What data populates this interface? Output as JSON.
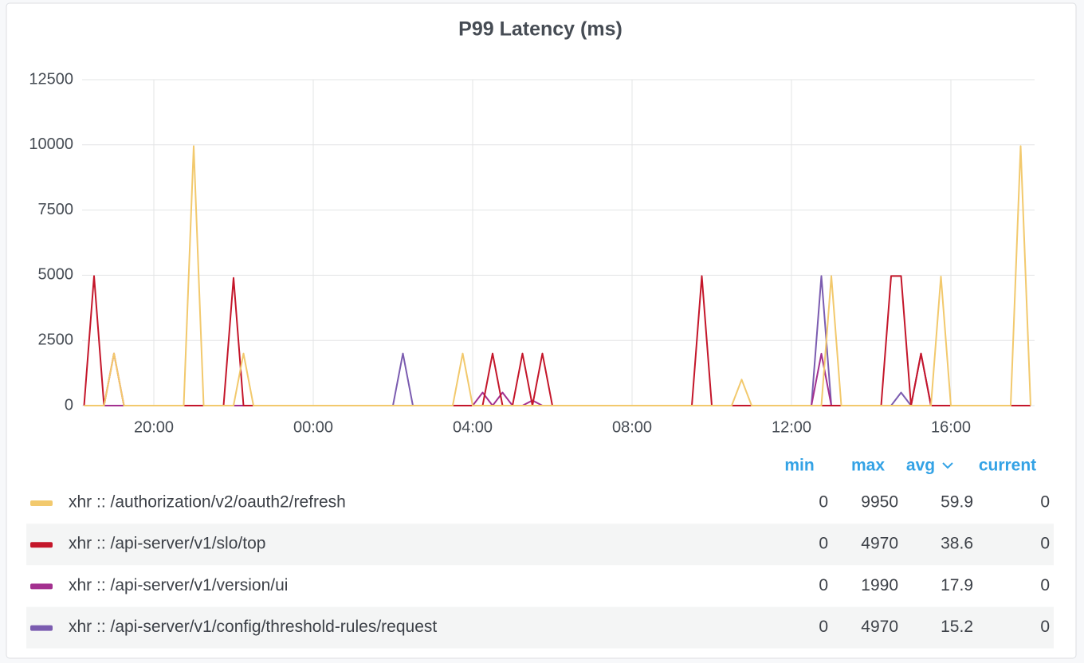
{
  "chart_data": {
    "type": "line",
    "title": "P99 Latency (ms)",
    "categories": [
      null,
      null,
      null,
      null,
      null,
      null,
      null,
      "20:00",
      null,
      null,
      null,
      null,
      null,
      null,
      null,
      null,
      null,
      null,
      null,
      null,
      null,
      null,
      null,
      "00:00",
      null,
      null,
      null,
      null,
      null,
      null,
      null,
      null,
      null,
      null,
      null,
      null,
      null,
      null,
      null,
      "04:00",
      null,
      null,
      null,
      null,
      null,
      null,
      null,
      null,
      null,
      null,
      null,
      null,
      null,
      null,
      null,
      "08:00",
      null,
      null,
      null,
      null,
      null,
      null,
      null,
      null,
      null,
      null,
      null,
      null,
      null,
      null,
      null,
      "12:00",
      null,
      null,
      null,
      null,
      null,
      null,
      null,
      null,
      null,
      null,
      null,
      null,
      null,
      null,
      null,
      "16:00",
      null,
      null,
      null,
      null,
      null,
      null,
      null,
      null
    ],
    "ylim": [
      0,
      12500
    ],
    "yticks": [
      0,
      2500,
      5000,
      7500,
      10000,
      12500
    ],
    "grid": true,
    "legend_columns": [
      "min",
      "max",
      "avg",
      "current"
    ],
    "series": [
      {
        "name": "xhr :: /authorization/v2/oauth2/refresh",
        "color": "#f2c96d",
        "min": 0,
        "max": 9950,
        "avg": 59.9,
        "current": 0,
        "values": [
          0,
          0,
          0,
          2000,
          0,
          0,
          0,
          0,
          0,
          0,
          0,
          9950,
          0,
          0,
          0,
          0,
          2000,
          0,
          0,
          0,
          0,
          0,
          0,
          0,
          0,
          0,
          0,
          0,
          0,
          0,
          0,
          0,
          0,
          0,
          0,
          0,
          0,
          0,
          2000,
          0,
          0,
          0,
          0,
          0,
          0,
          0,
          0,
          0,
          0,
          0,
          0,
          0,
          0,
          0,
          0,
          0,
          0,
          0,
          0,
          0,
          0,
          0,
          0,
          0,
          0,
          0,
          1000,
          0,
          0,
          0,
          0,
          0,
          0,
          0,
          0,
          4970,
          0,
          0,
          0,
          0,
          0,
          0,
          0,
          0,
          0,
          0,
          4950,
          0,
          0,
          0,
          0,
          0,
          0,
          0,
          9950,
          0
        ]
      },
      {
        "name": "xhr :: /api-server/v1/slo/top",
        "color": "#c4162a",
        "min": 0,
        "max": 4970,
        "avg": 38.6,
        "current": 0,
        "values": [
          0,
          4970,
          0,
          2000,
          0,
          0,
          0,
          0,
          0,
          0,
          0,
          0,
          0,
          0,
          0,
          4900,
          0,
          0,
          0,
          0,
          0,
          0,
          0,
          0,
          0,
          0,
          0,
          0,
          0,
          0,
          0,
          0,
          0,
          0,
          0,
          0,
          0,
          0,
          0,
          0,
          0,
          2000,
          0,
          0,
          2000,
          0,
          2000,
          0,
          0,
          0,
          0,
          0,
          0,
          0,
          0,
          0,
          0,
          0,
          0,
          0,
          0,
          0,
          4970,
          0,
          0,
          0,
          0,
          0,
          0,
          0,
          0,
          0,
          0,
          0,
          0,
          0,
          0,
          0,
          0,
          0,
          0,
          4970,
          4970,
          0,
          2000,
          0,
          0,
          0,
          0,
          0,
          0,
          0,
          0,
          0,
          0,
          0
        ]
      },
      {
        "name": "xhr :: /api-server/v1/version/ui",
        "color": "#a3308f",
        "min": 0,
        "max": 1990,
        "avg": 17.9,
        "current": 0,
        "values": [
          0,
          0,
          0,
          0,
          0,
          0,
          0,
          0,
          0,
          0,
          0,
          0,
          0,
          0,
          0,
          0,
          0,
          0,
          0,
          0,
          0,
          0,
          0,
          0,
          0,
          0,
          0,
          0,
          0,
          0,
          0,
          0,
          0,
          0,
          0,
          0,
          0,
          0,
          0,
          0,
          500,
          0,
          500,
          0,
          0,
          200,
          0,
          0,
          0,
          0,
          0,
          0,
          0,
          0,
          0,
          0,
          0,
          0,
          0,
          0,
          0,
          0,
          0,
          0,
          0,
          0,
          0,
          0,
          0,
          0,
          0,
          0,
          0,
          0,
          1990,
          0,
          0,
          0,
          0,
          0,
          0,
          0,
          0,
          0,
          1990,
          0,
          0,
          0,
          0,
          0,
          0,
          0,
          0,
          0,
          0,
          0
        ]
      },
      {
        "name": "xhr :: /api-server/v1/config/threshold-rules/request",
        "color": "#7b5cb0",
        "min": 0,
        "max": 4970,
        "avg": 15.2,
        "current": 0,
        "values": [
          0,
          0,
          0,
          0,
          0,
          0,
          0,
          0,
          0,
          0,
          0,
          0,
          0,
          0,
          0,
          0,
          0,
          0,
          0,
          0,
          0,
          0,
          0,
          0,
          0,
          0,
          0,
          0,
          0,
          0,
          0,
          0,
          2000,
          0,
          0,
          0,
          0,
          0,
          0,
          0,
          0,
          0,
          0,
          0,
          0,
          0,
          0,
          0,
          0,
          0,
          0,
          0,
          0,
          0,
          0,
          0,
          0,
          0,
          0,
          0,
          0,
          0,
          0,
          0,
          0,
          0,
          0,
          0,
          0,
          0,
          0,
          0,
          0,
          0,
          4970,
          0,
          0,
          0,
          0,
          0,
          0,
          0,
          500,
          0,
          0,
          0,
          0,
          0,
          0,
          0,
          0,
          0,
          0,
          0,
          0,
          0
        ]
      }
    ]
  }
}
